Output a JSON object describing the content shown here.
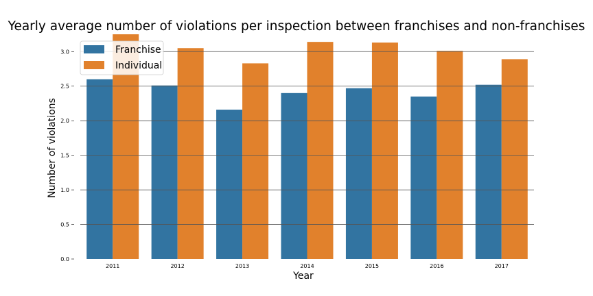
{
  "chart_data": {
    "type": "bar",
    "title": "Yearly average number of violations per inspection between franchises and non-franchises",
    "xlabel": "Year",
    "ylabel": "Number of violations",
    "categories": [
      "2011",
      "2012",
      "2013",
      "2014",
      "2015",
      "2016",
      "2017"
    ],
    "series": [
      {
        "name": "Franchise",
        "color": "#3274a1",
        "values": [
          2.6,
          2.51,
          2.16,
          2.4,
          2.47,
          2.35,
          2.52
        ]
      },
      {
        "name": "Individual",
        "color": "#e1812c",
        "values": [
          3.25,
          3.05,
          2.83,
          3.14,
          3.13,
          3.01,
          2.89
        ]
      }
    ],
    "yticks": [
      "0.0",
      "0.5",
      "1.0",
      "1.5",
      "2.0",
      "2.5",
      "3.0"
    ],
    "ylim": [
      0,
      3.3
    ],
    "grid": "horizontal",
    "legend_position": "top-left"
  }
}
